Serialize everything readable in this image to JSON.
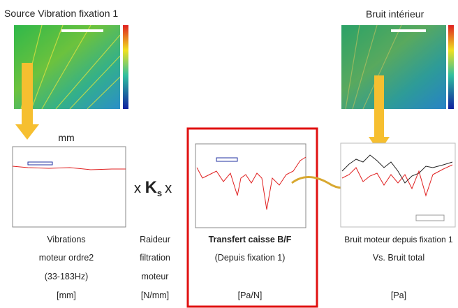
{
  "titles": {
    "source": "Source Vibration fixation 1",
    "interior": "Bruit intérieur",
    "unit": "mm"
  },
  "formula": {
    "prefix": "x",
    "symbol": "K",
    "subscript": "s",
    "suffix": "x"
  },
  "columns": [
    {
      "lines": [
        "Vibrations",
        "moteur ordre2",
        "(33-183Hz)",
        "[mm]"
      ]
    },
    {
      "lines": [
        "Raideur",
        "filtration",
        "moteur",
        "[N/mm]"
      ]
    },
    {
      "lines": [
        "Transfert caisse B/F",
        "(Depuis fixation 1)",
        "",
        "[Pa/N]"
      ]
    },
    {
      "lines": [
        "Bruit moteur depuis fixation 1",
        "Vs. Bruit total",
        "",
        "[Pa]"
      ]
    }
  ]
}
